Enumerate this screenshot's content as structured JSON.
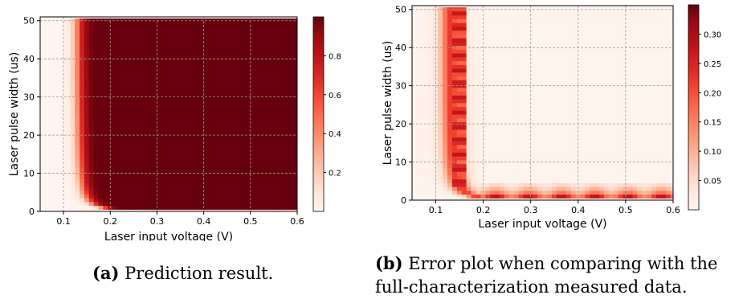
{
  "chart_data": [
    {
      "type": "heatmap",
      "xlabel": "Laser input voltage (V)",
      "ylabel": "Laser pulse width (us)",
      "xlim": [
        0.05,
        0.6
      ],
      "ylim": [
        0,
        51
      ],
      "xticks": [
        0.1,
        0.2,
        0.3,
        0.4,
        0.5,
        0.6
      ],
      "yticks": [
        0,
        10,
        20,
        30,
        40,
        50
      ],
      "grid": true,
      "colormap": "Reds",
      "colorbar": {
        "range": [
          0,
          1.0
        ],
        "ticks": [
          0.2,
          0.4,
          0.6,
          0.8
        ]
      },
      "x_grid": {
        "start": 0.05,
        "stop": 0.6,
        "step": 0.01
      },
      "y_grid": {
        "start": 0,
        "stop": 50,
        "step": 1
      },
      "trend": "probability ~0 for voltage < 0.11 V; rises sharply near 0.12-0.15 V; ~1.0 (dark) for voltage > 0.15 V and pulse width > 3 us; lighter band at pulse width 1-2 us",
      "caption_label": "(a)",
      "caption_text": "Prediction result."
    },
    {
      "type": "heatmap",
      "xlabel": "Laser input voltage (V)",
      "ylabel": "Laser pulse width (us)",
      "xlim": [
        0.05,
        0.6
      ],
      "ylim": [
        0,
        51
      ],
      "xticks": [
        0.1,
        0.2,
        0.3,
        0.4,
        0.5,
        0.6
      ],
      "yticks": [
        0,
        10,
        20,
        30,
        40,
        50
      ],
      "grid": true,
      "colormap": "Reds",
      "colorbar": {
        "range": [
          0,
          0.35
        ],
        "ticks": [
          0.05,
          0.1,
          0.15,
          0.2,
          0.25,
          0.3
        ]
      },
      "x_grid": {
        "start": 0.05,
        "stop": 0.6,
        "step": 0.01
      },
      "y_grid": {
        "start": 0,
        "stop": 50,
        "step": 1
      },
      "trend": "error highest (~0.3) along an L-shaped transition boundary: vertical band near 0.13-0.16 V and horizontal band at pulse width 1-4 us; ~0 elsewhere",
      "caption_label": "(b)",
      "caption_text": "Error plot when comparing with the full-characterization measured data."
    }
  ]
}
